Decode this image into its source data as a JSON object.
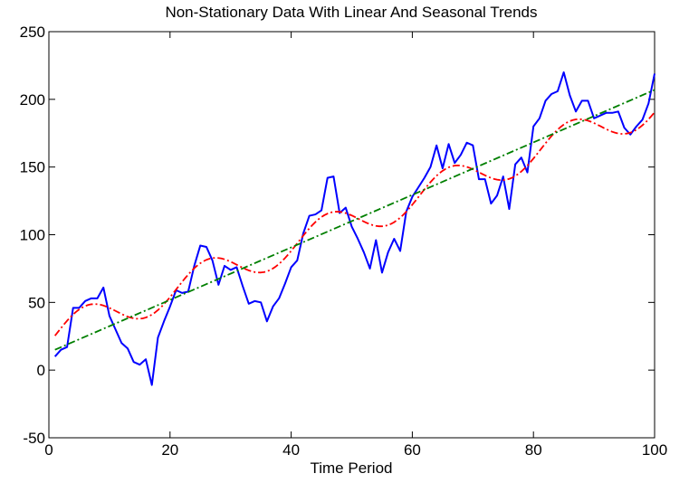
{
  "chart_data": {
    "type": "line",
    "title": "Non-Stationary Data With Linear And Seasonal Trends",
    "xlabel": "Time Period",
    "ylabel": "",
    "xlim": [
      0,
      100
    ],
    "ylim": [
      -50,
      250
    ],
    "x_ticks": [
      0,
      20,
      40,
      60,
      80,
      100
    ],
    "y_ticks": [
      -50,
      0,
      50,
      100,
      150,
      200,
      250
    ],
    "grid": false,
    "legend": "none",
    "series": [
      {
        "color": "#0000ff",
        "style": "solid",
        "x": [
          1,
          2,
          3,
          4,
          5,
          6,
          7,
          8,
          9,
          10,
          11,
          12,
          13,
          14,
          15,
          16,
          17,
          18,
          19,
          20,
          21,
          22,
          23,
          24,
          25,
          26,
          27,
          28,
          29,
          30,
          31,
          32,
          33,
          34,
          35,
          36,
          37,
          38,
          39,
          40,
          41,
          42,
          43,
          44,
          45,
          46,
          47,
          48,
          49,
          50,
          51,
          52,
          53,
          54,
          55,
          56,
          57,
          58,
          59,
          60,
          61,
          62,
          63,
          64,
          65,
          66,
          67,
          68,
          69,
          70,
          71,
          72,
          73,
          74,
          75,
          76,
          77,
          78,
          79,
          80,
          81,
          82,
          83,
          84,
          85,
          86,
          87,
          88,
          89,
          90,
          91,
          92,
          93,
          94,
          95,
          96,
          97,
          98,
          99,
          100
        ],
        "y": [
          10,
          15,
          17,
          46,
          46,
          51,
          53,
          53,
          61,
          40,
          30,
          20,
          16,
          6,
          4,
          8,
          -11,
          24,
          36,
          47,
          59,
          57,
          58,
          77,
          92,
          91,
          81,
          63,
          77,
          74,
          76,
          62,
          49,
          51,
          50,
          36,
          47,
          53,
          64,
          76,
          81,
          101,
          114,
          115,
          118,
          142,
          143,
          116,
          120,
          106,
          97,
          87,
          75,
          96,
          72,
          87,
          97,
          88,
          117,
          128,
          135,
          142,
          150,
          166,
          149,
          167,
          153,
          159,
          168,
          166,
          141,
          141,
          123,
          129,
          143,
          119,
          152,
          157,
          146,
          180,
          186,
          199,
          204,
          206,
          220,
          203,
          191,
          199,
          199,
          186,
          188,
          190,
          190,
          191,
          179,
          174,
          180,
          185,
          197,
          219
        ]
      },
      {
        "color": "#ff0000",
        "style": "dash-dot",
        "x": [
          1,
          100
        ],
        "y": [
          26,
          195
        ]
      },
      {
        "color": "#007f00",
        "style": "dash-dot",
        "x": [
          1,
          100
        ],
        "y": [
          15,
          207
        ]
      }
    ]
  }
}
